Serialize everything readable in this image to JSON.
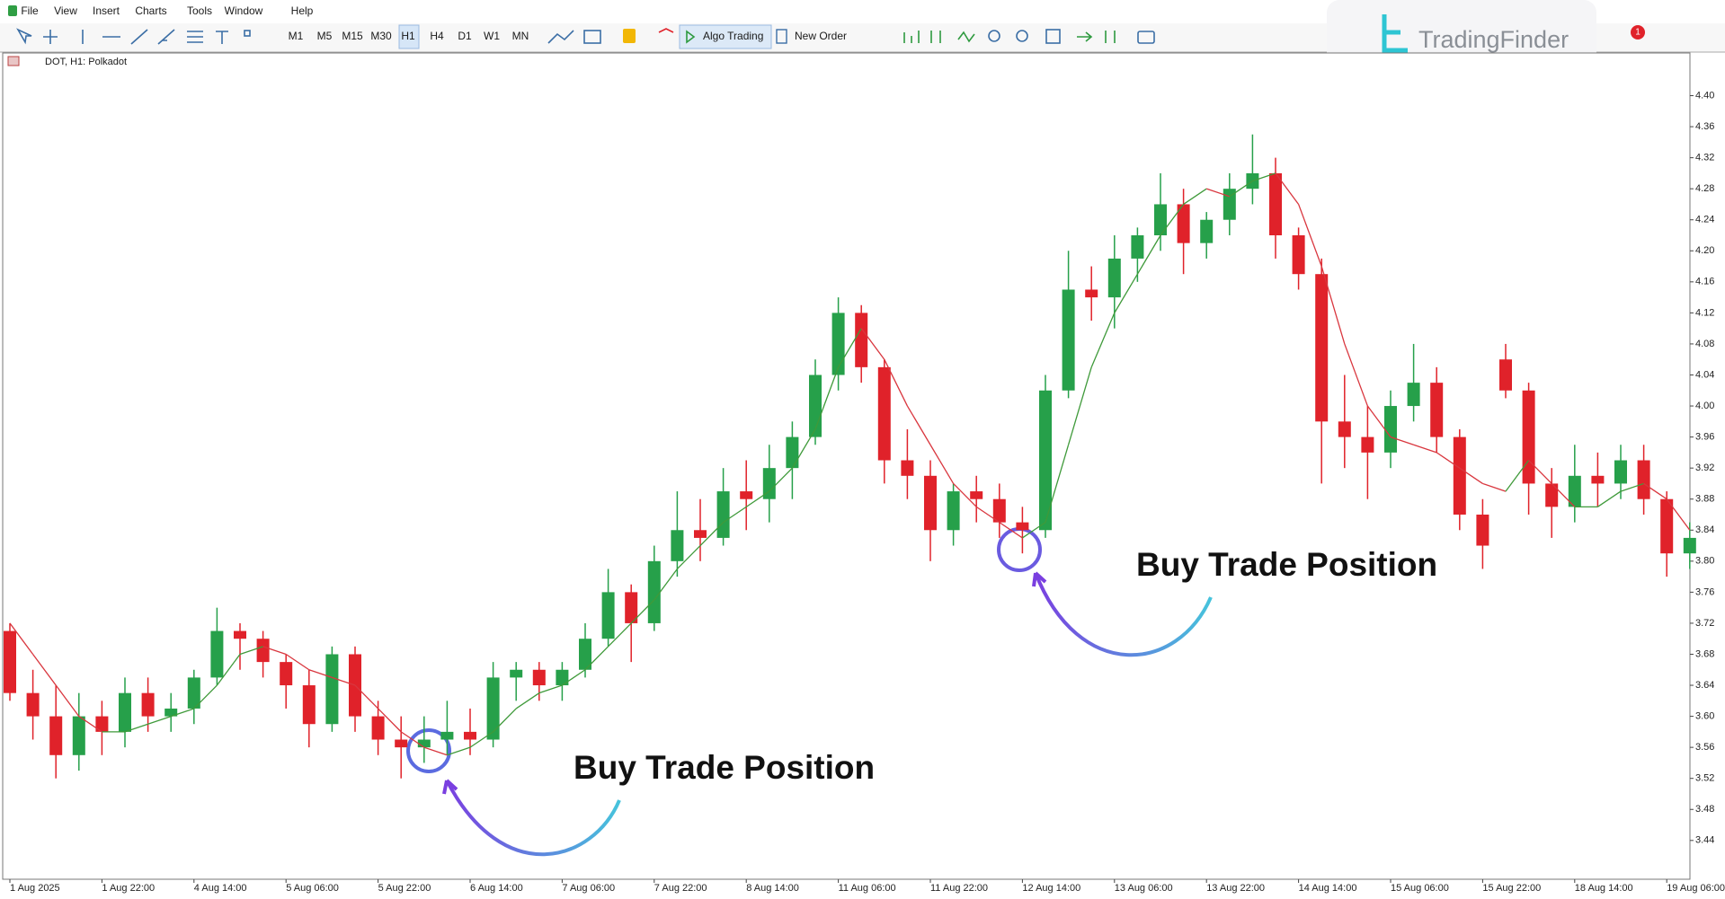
{
  "menu": [
    "File",
    "View",
    "Insert",
    "Charts",
    "Tools",
    "Window",
    "Help"
  ],
  "toolbar": {
    "timeframes": [
      "M1",
      "M5",
      "M15",
      "M30",
      "H1",
      "H4",
      "D1",
      "W1",
      "MN"
    ],
    "algo_trading": "Algo Trading",
    "new_order": "New Order"
  },
  "watermark": "TradingFinder",
  "notification_count": 1,
  "chart_data": {
    "type": "candlestick",
    "symbol_label": "DOT, H1:  Polkadot",
    "x_labels": [
      "1 Aug 2025",
      "1 Aug 22:00",
      "4 Aug 14:00",
      "5 Aug 06:00",
      "5 Aug 22:00",
      "6 Aug 14:00",
      "7 Aug 06:00",
      "7 Aug 22:00",
      "8 Aug 14:00",
      "11 Aug 06:00",
      "11 Aug 22:00",
      "12 Aug 14:00",
      "13 Aug 06:00",
      "13 Aug 22:00",
      "14 Aug 14:00",
      "15 Aug 06:00",
      "15 Aug 22:00",
      "18 Aug 14:00",
      "19 Aug 06:00"
    ],
    "open": [
      3.71,
      3.63,
      3.6,
      3.55,
      3.6,
      3.58,
      3.63,
      3.6,
      3.61,
      3.65,
      3.71,
      3.7,
      3.67,
      3.64,
      3.59,
      3.68,
      3.6,
      3.57,
      3.56,
      3.57,
      3.58,
      3.57,
      3.65,
      3.66,
      3.64,
      3.66,
      3.7,
      3.76,
      3.72,
      3.8,
      3.84,
      3.83,
      3.89,
      3.88,
      3.92,
      3.96,
      4.04,
      4.12,
      4.05,
      3.93,
      3.91,
      3.84,
      3.89,
      3.88,
      3.85,
      3.84,
      4.02,
      4.15,
      4.14,
      4.19,
      4.22,
      4.26,
      4.21,
      4.24,
      4.28,
      4.3,
      4.22,
      4.17,
      3.98,
      3.96,
      3.94,
      4.0,
      4.03,
      3.96,
      3.86,
      4.06,
      4.02,
      3.9,
      3.87,
      3.91,
      3.9,
      3.93,
      3.88,
      3.81
    ],
    "high": [
      3.72,
      3.66,
      3.64,
      3.63,
      3.62,
      3.65,
      3.65,
      3.63,
      3.66,
      3.74,
      3.72,
      3.71,
      3.68,
      3.66,
      3.69,
      3.69,
      3.62,
      3.6,
      3.6,
      3.62,
      3.61,
      3.67,
      3.67,
      3.67,
      3.67,
      3.72,
      3.79,
      3.77,
      3.82,
      3.89,
      3.88,
      3.92,
      3.93,
      3.95,
      3.98,
      4.06,
      4.14,
      4.13,
      4.06,
      3.97,
      3.93,
      3.9,
      3.91,
      3.9,
      3.87,
      4.04,
      4.2,
      4.18,
      4.22,
      4.23,
      4.3,
      4.28,
      4.25,
      4.3,
      4.35,
      4.32,
      4.23,
      4.19,
      4.04,
      4.0,
      4.02,
      4.08,
      4.05,
      3.97,
      3.88,
      4.08,
      4.03,
      3.92,
      3.95,
      3.94,
      3.95,
      3.95,
      3.89,
      3.85
    ],
    "low": [
      3.62,
      3.57,
      3.52,
      3.53,
      3.55,
      3.56,
      3.58,
      3.58,
      3.59,
      3.64,
      3.66,
      3.65,
      3.61,
      3.56,
      3.58,
      3.58,
      3.55,
      3.52,
      3.54,
      3.55,
      3.55,
      3.56,
      3.62,
      3.62,
      3.62,
      3.65,
      3.69,
      3.67,
      3.71,
      3.78,
      3.8,
      3.82,
      3.84,
      3.85,
      3.88,
      3.95,
      4.02,
      4.03,
      3.9,
      3.88,
      3.8,
      3.82,
      3.85,
      3.83,
      3.81,
      3.83,
      4.01,
      4.11,
      4.1,
      4.16,
      4.2,
      4.17,
      4.19,
      4.22,
      4.26,
      4.19,
      4.15,
      3.9,
      3.92,
      3.88,
      3.92,
      3.98,
      3.94,
      3.84,
      3.79,
      4.01,
      3.86,
      3.83,
      3.85,
      3.87,
      3.88,
      3.86,
      3.78,
      3.79
    ],
    "close": [
      3.63,
      3.6,
      3.55,
      3.6,
      3.58,
      3.63,
      3.6,
      3.61,
      3.65,
      3.71,
      3.7,
      3.67,
      3.64,
      3.59,
      3.68,
      3.6,
      3.57,
      3.56,
      3.57,
      3.58,
      3.57,
      3.65,
      3.66,
      3.64,
      3.66,
      3.7,
      3.76,
      3.72,
      3.8,
      3.84,
      3.83,
      3.89,
      3.88,
      3.92,
      3.96,
      4.04,
      4.12,
      4.05,
      3.93,
      3.91,
      3.84,
      3.89,
      3.88,
      3.85,
      3.84,
      4.02,
      4.15,
      4.14,
      4.19,
      4.22,
      4.26,
      4.21,
      4.24,
      4.28,
      4.3,
      4.22,
      4.17,
      3.98,
      3.96,
      3.94,
      4.0,
      4.03,
      3.96,
      3.86,
      3.82,
      4.02,
      3.9,
      3.87,
      3.91,
      3.9,
      3.93,
      3.88,
      3.81,
      3.83
    ],
    "ma": [
      3.72,
      3.68,
      3.64,
      3.6,
      3.58,
      3.58,
      3.59,
      3.6,
      3.61,
      3.64,
      3.68,
      3.69,
      3.68,
      3.66,
      3.65,
      3.64,
      3.61,
      3.58,
      3.56,
      3.55,
      3.56,
      3.58,
      3.61,
      3.63,
      3.64,
      3.66,
      3.69,
      3.72,
      3.75,
      3.79,
      3.82,
      3.85,
      3.87,
      3.89,
      3.92,
      3.97,
      4.05,
      4.1,
      4.06,
      4.0,
      3.95,
      3.9,
      3.87,
      3.85,
      3.83,
      3.85,
      3.95,
      4.05,
      4.12,
      4.17,
      4.22,
      4.26,
      4.28,
      4.27,
      4.29,
      4.3,
      4.26,
      4.18,
      4.08,
      4.0,
      3.96,
      3.95,
      3.94,
      3.92,
      3.9,
      3.89,
      3.93,
      3.9,
      3.87,
      3.87,
      3.89,
      3.9,
      3.88,
      3.84
    ],
    "up_color": "#26a04a",
    "down_color": "#e0222a",
    "ma_up_color": "#3f9a3a",
    "ma_down_color": "#d9363e",
    "ylim": [
      3.39,
      4.455
    ],
    "yticks": [
      {
        "value": 3.44,
        "label": "3.44"
      },
      {
        "value": 3.48,
        "label": "3.48"
      },
      {
        "value": 3.52,
        "label": "3.52"
      },
      {
        "value": 3.56,
        "label": "3.56"
      },
      {
        "value": 3.6,
        "label": "3.60"
      },
      {
        "value": 3.64,
        "label": "3.64"
      },
      {
        "value": 3.68,
        "label": "3.68"
      },
      {
        "value": 3.72,
        "label": "3.72"
      },
      {
        "value": 3.76,
        "label": "3.76"
      },
      {
        "value": 3.8,
        "label": "3.80"
      },
      {
        "value": 3.84,
        "label": "3.84"
      },
      {
        "value": 3.88,
        "label": "3.88"
      },
      {
        "value": 3.92,
        "label": "3.92"
      },
      {
        "value": 3.96,
        "label": "3.96"
      },
      {
        "value": 4.0,
        "label": "4.00"
      },
      {
        "value": 4.04,
        "label": "4.04"
      },
      {
        "value": 4.08,
        "label": "4.08"
      },
      {
        "value": 4.12,
        "label": "4.12"
      },
      {
        "value": 4.16,
        "label": "4.16"
      },
      {
        "value": 4.2,
        "label": "4.20"
      },
      {
        "value": 4.24,
        "label": "4.24"
      },
      {
        "value": 4.28,
        "label": "4.28"
      },
      {
        "value": 4.32,
        "label": "4.32"
      },
      {
        "value": 4.36,
        "label": "4.36"
      },
      {
        "value": 4.4,
        "label": "4.40"
      }
    ],
    "annotations": [
      "Buy Trade Position",
      "Buy Trade Position"
    ]
  }
}
